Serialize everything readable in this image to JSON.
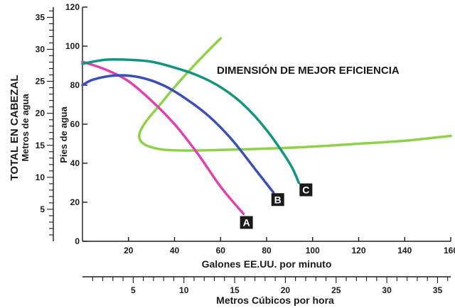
{
  "chart_data": {
    "type": "line",
    "annotation": "DIMENSIÓN DE MEJOR EFICIENCIA",
    "x_primary": {
      "label": "Galones EE.UU. por minuto",
      "range": [
        0,
        160
      ],
      "ticks": [
        "20",
        "40",
        "60",
        "80",
        "100",
        "120",
        "140",
        "160"
      ]
    },
    "x_secondary": {
      "label": "Metros Cúbicos por hora",
      "range": [
        0,
        36.3
      ],
      "ticks": [
        "5",
        "10",
        "15",
        "20",
        "25",
        "30",
        "35"
      ]
    },
    "y_primary": {
      "label": "Pies de agua",
      "range": [
        0,
        120
      ],
      "ticks": [
        "0",
        "20",
        "40",
        "60",
        "80",
        "100",
        "120"
      ]
    },
    "y_secondary": {
      "label_line1": "TOTAL EN CABEZAL",
      "label_line2": "Metros de agua",
      "range": [
        0,
        36.6
      ],
      "ticks": [
        "5",
        "10",
        "15",
        "20",
        "25",
        "30",
        "35"
      ]
    },
    "series": [
      {
        "name": "A",
        "color": "#e040b0",
        "x": [
          0,
          10,
          20,
          30,
          40,
          50,
          60,
          70
        ],
        "y": [
          92,
          88,
          82,
          72,
          60,
          45,
          28,
          14
        ]
      },
      {
        "name": "B",
        "color": "#3a4fb8",
        "x": [
          0,
          5,
          15,
          25,
          35,
          45,
          55,
          65,
          75,
          83
        ],
        "y": [
          80,
          83,
          85,
          84,
          80,
          73,
          64,
          52,
          37,
          25
        ]
      },
      {
        "name": "C",
        "color": "#119480",
        "x": [
          0,
          10,
          20,
          30,
          40,
          50,
          60,
          70,
          80,
          90,
          94
        ],
        "y": [
          91,
          93,
          93,
          92,
          89,
          85,
          79,
          70,
          57,
          40,
          30
        ]
      }
    ],
    "efficiency_band": {
      "color": "#8ed24a",
      "x": [
        60,
        50,
        40,
        33,
        28,
        25,
        25,
        28,
        35,
        45,
        60,
        80,
        100,
        120,
        140,
        160
      ],
      "y": [
        104,
        92,
        79,
        69,
        62,
        56,
        52,
        49,
        47,
        46.5,
        46.8,
        47.5,
        48.5,
        50,
        51.5,
        54
      ]
    }
  }
}
